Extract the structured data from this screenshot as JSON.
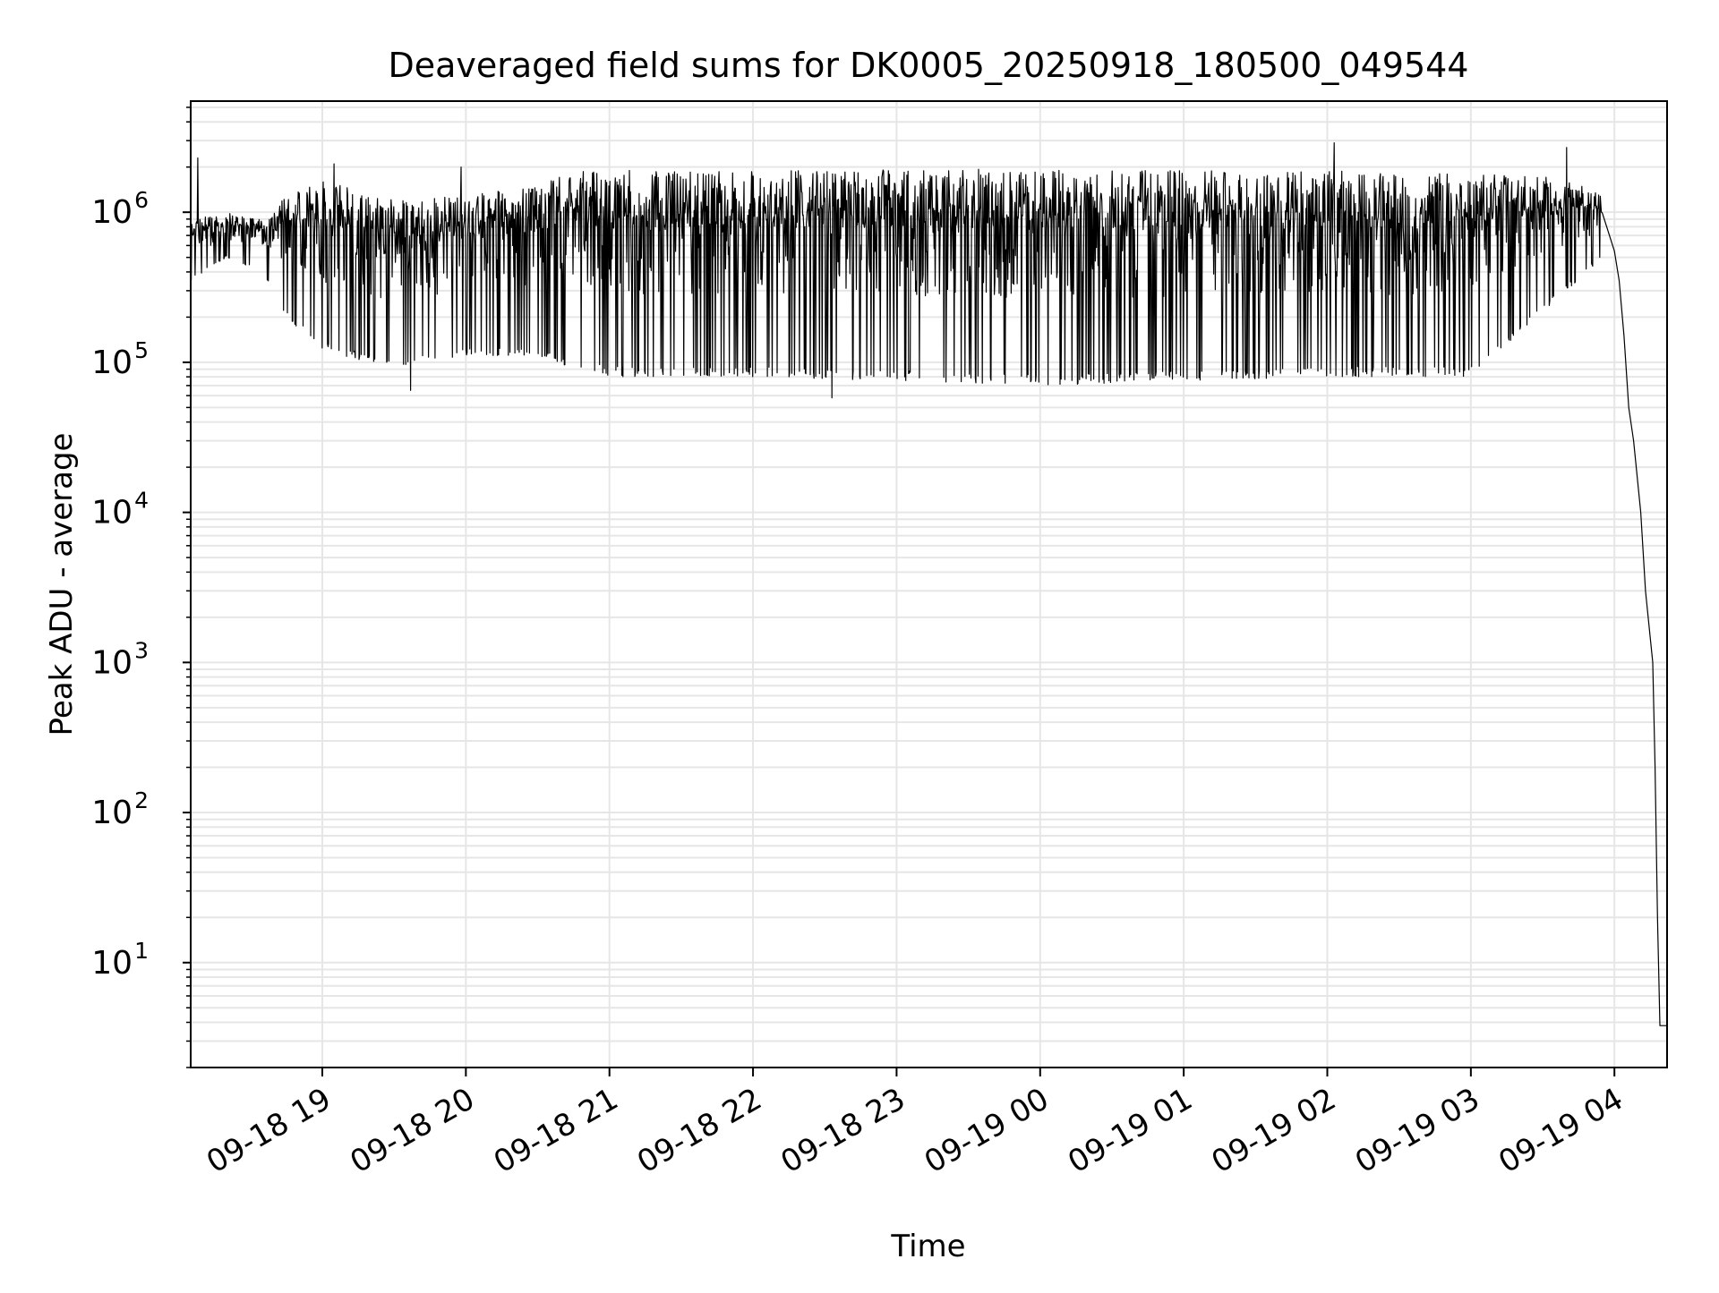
{
  "chart_data": {
    "type": "line",
    "title": "Deaveraged field sums for DK0005_20250918_180500_049544",
    "xlabel": "Time",
    "ylabel": "Peak ADU - average",
    "yscale": "log",
    "grid": true,
    "grid_color": "#e6e6e6",
    "line_color": "#000000",
    "x_range": [
      "2025-09-18 18:05",
      "2025-09-19 04:22"
    ],
    "ylim": [
      2,
      5500000
    ],
    "xticks": [
      {
        "x": "2025-09-18 19:00",
        "label": "09-18 19"
      },
      {
        "x": "2025-09-18 20:00",
        "label": "09-18 20"
      },
      {
        "x": "2025-09-18 21:00",
        "label": "09-18 21"
      },
      {
        "x": "2025-09-18 22:00",
        "label": "09-18 22"
      },
      {
        "x": "2025-09-18 23:00",
        "label": "09-18 23"
      },
      {
        "x": "2025-09-19 00:00",
        "label": "09-19 00"
      },
      {
        "x": "2025-09-19 01:00",
        "label": "09-19 01"
      },
      {
        "x": "2025-09-19 02:00",
        "label": "09-19 02"
      },
      {
        "x": "2025-09-19 03:00",
        "label": "09-19 03"
      },
      {
        "x": "2025-09-19 04:00",
        "label": "09-19 04"
      }
    ],
    "yticks": [
      {
        "value": 10,
        "base": "10",
        "exp": "1"
      },
      {
        "value": 100,
        "base": "10",
        "exp": "2"
      },
      {
        "value": 1000,
        "base": "10",
        "exp": "3"
      },
      {
        "value": 10000,
        "base": "10",
        "exp": "4"
      },
      {
        "value": 100000,
        "base": "10",
        "exp": "5"
      },
      {
        "value": 1000000,
        "base": "10",
        "exp": "6"
      }
    ],
    "series": [
      {
        "envelope": [
          {
            "x": "2025-09-18 18:05",
            "y_high": 900000,
            "y_low": 350000
          },
          {
            "x": "2025-09-18 18:20",
            "y_high": 1000000,
            "y_low": 500000
          },
          {
            "x": "2025-09-18 18:35",
            "y_high": 900000,
            "y_low": 400000
          },
          {
            "x": "2025-09-18 18:45",
            "y_high": 1300000,
            "y_low": 200000
          },
          {
            "x": "2025-09-18 19:00",
            "y_high": 1700000,
            "y_low": 120000
          },
          {
            "x": "2025-09-18 19:30",
            "y_high": 1200000,
            "y_low": 90000
          },
          {
            "x": "2025-09-18 20:00",
            "y_high": 1300000,
            "y_low": 110000
          },
          {
            "x": "2025-09-18 20:30",
            "y_high": 1500000,
            "y_low": 110000
          },
          {
            "x": "2025-09-18 20:45",
            "y_high": 1900000,
            "y_low": 90000
          },
          {
            "x": "2025-09-18 21:00",
            "y_high": 1900000,
            "y_low": 80000
          },
          {
            "x": "2025-09-18 22:00",
            "y_high": 1900000,
            "y_low": 80000
          },
          {
            "x": "2025-09-18 23:00",
            "y_high": 2000000,
            "y_low": 75000
          },
          {
            "x": "2025-09-19 00:00",
            "y_high": 1900000,
            "y_low": 70000
          },
          {
            "x": "2025-09-19 01:00",
            "y_high": 1900000,
            "y_low": 75000
          },
          {
            "x": "2025-09-19 02:00",
            "y_high": 1900000,
            "y_low": 80000
          },
          {
            "x": "2025-09-19 03:00",
            "y_high": 1800000,
            "y_low": 80000
          },
          {
            "x": "2025-09-19 03:40",
            "y_high": 1700000,
            "y_low": 300000
          },
          {
            "x": "2025-09-19 03:55",
            "y_high": 1300000,
            "y_low": 500000
          }
        ],
        "spikes": [
          {
            "x": "2025-09-18 18:08",
            "y": 2300000
          },
          {
            "x": "2025-09-18 19:05",
            "y": 2100000
          },
          {
            "x": "2025-09-18 19:37",
            "y": 65000
          },
          {
            "x": "2025-09-18 19:58",
            "y": 2000000
          },
          {
            "x": "2025-09-18 22:33",
            "y": 58000
          },
          {
            "x": "2025-09-19 02:03",
            "y": 2900000
          },
          {
            "x": "2025-09-19 03:40",
            "y": 2700000
          }
        ],
        "tail": [
          {
            "x": "2025-09-19 04:00",
            "y": 550000
          },
          {
            "x": "2025-09-19 04:02",
            "y": 350000
          },
          {
            "x": "2025-09-19 04:04",
            "y": 150000
          },
          {
            "x": "2025-09-19 04:06",
            "y": 50000
          },
          {
            "x": "2025-09-19 04:08",
            "y": 30000
          },
          {
            "x": "2025-09-19 04:11",
            "y": 10000
          },
          {
            "x": "2025-09-19 04:13",
            "y": 3000
          },
          {
            "x": "2025-09-19 04:16",
            "y": 1000
          },
          {
            "x": "2025-09-19 04:17",
            "y": 200
          },
          {
            "x": "2025-09-19 04:18",
            "y": 20
          },
          {
            "x": "2025-09-19 04:19",
            "y": 3.8
          },
          {
            "x": "2025-09-19 04:22",
            "y": 3.8
          }
        ]
      }
    ]
  }
}
